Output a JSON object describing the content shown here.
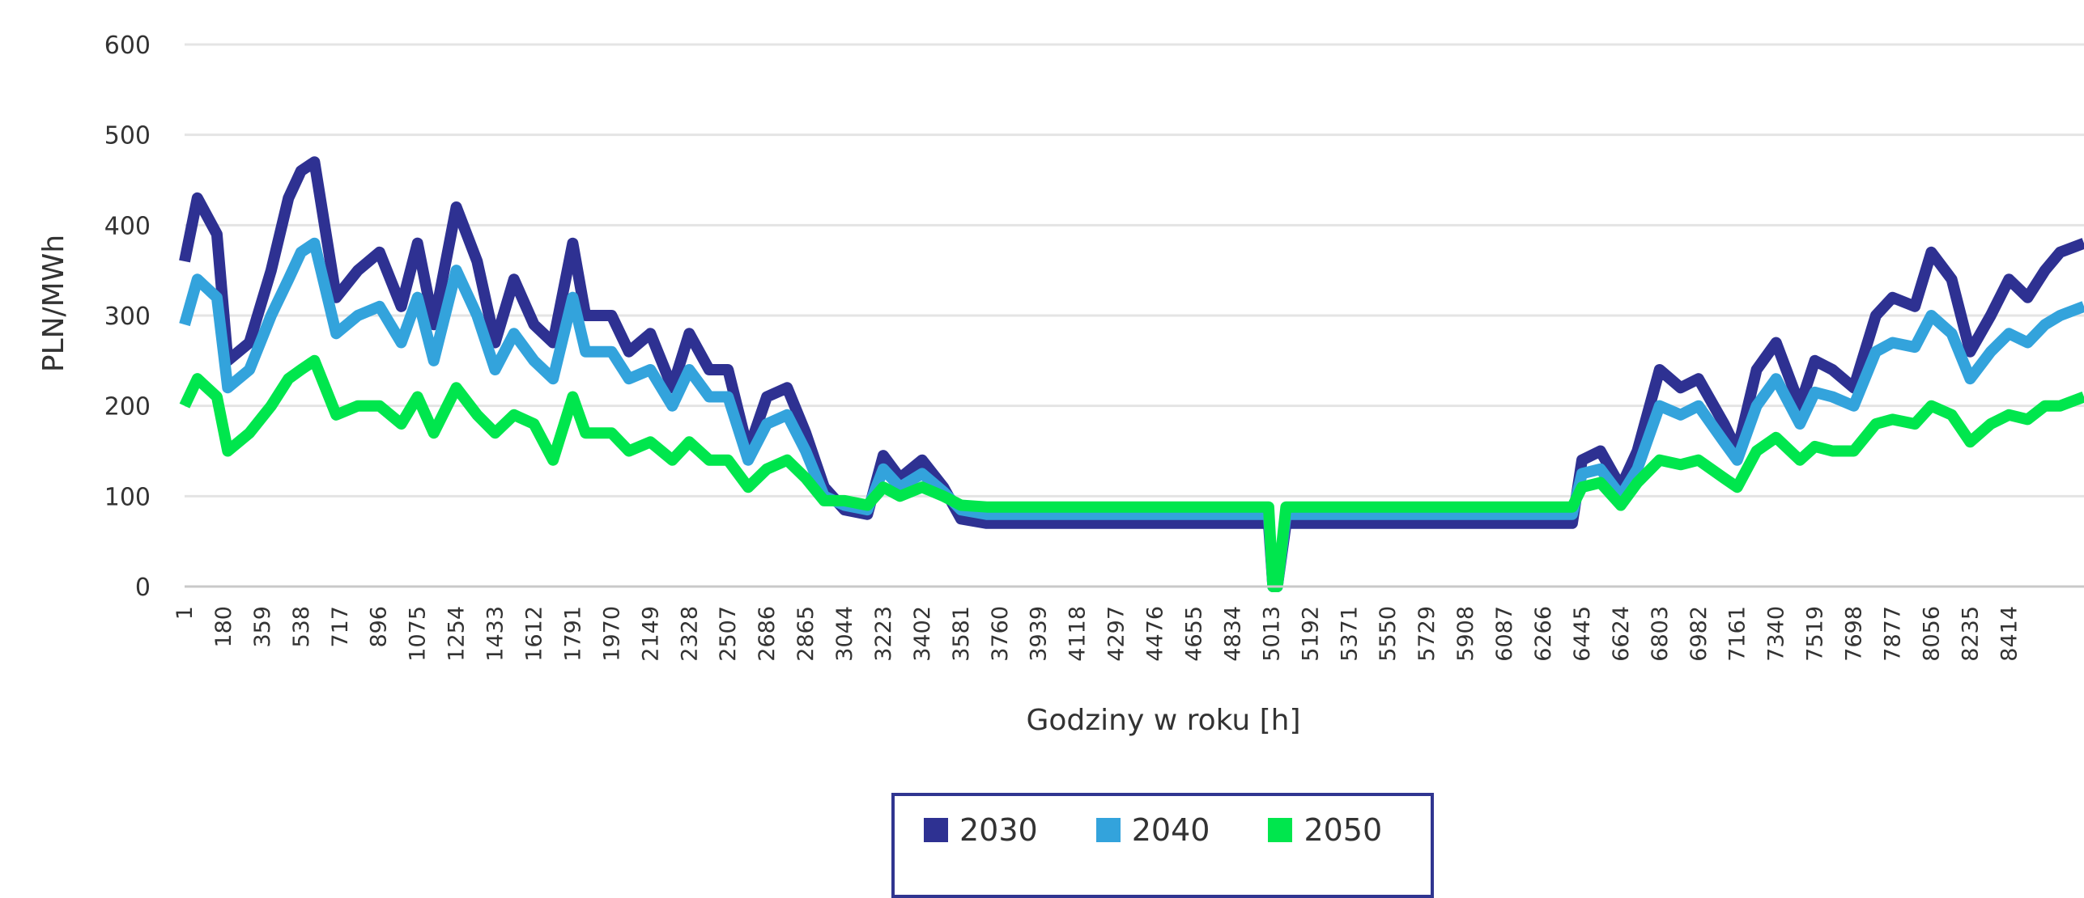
{
  "chart_data": {
    "type": "line",
    "title": "",
    "xlabel": "Godziny w roku [h]",
    "ylabel": "PLN/MWh",
    "ylim": [
      0,
      600
    ],
    "yticks": [
      0,
      100,
      200,
      300,
      400,
      500,
      600
    ],
    "xlim": [
      1,
      8760
    ],
    "xticks": [
      "1",
      "180",
      "359",
      "538",
      "717",
      "896",
      "1075",
      "1254",
      "1433",
      "1612",
      "1791",
      "1970",
      "2149",
      "2328",
      "2507",
      "2686",
      "2865",
      "3044",
      "3223",
      "3402",
      "3581",
      "3760",
      "3939",
      "4118",
      "4297",
      "4476",
      "4655",
      "4834",
      "5013",
      "5192",
      "5371",
      "5550",
      "5729",
      "5908",
      "6087",
      "6266",
      "6445",
      "6624",
      "6803",
      "6982",
      "7161",
      "7340",
      "7519",
      "7698",
      "7877",
      "8056",
      "8235",
      "8414"
    ],
    "grid": true,
    "legend_position": "bottom",
    "series": [
      {
        "name": "2030",
        "color": "#2e3192",
        "x": [
          1,
          60,
          150,
          200,
          300,
          400,
          480,
          538,
          600,
          700,
          800,
          900,
          1000,
          1075,
          1150,
          1254,
          1350,
          1433,
          1520,
          1612,
          1700,
          1791,
          1850,
          1970,
          2050,
          2149,
          2250,
          2328,
          2420,
          2507,
          2600,
          2686,
          2780,
          2865,
          2950,
          3044,
          3150,
          3223,
          3300,
          3402,
          3500,
          3581,
          3700,
          4000,
          4500,
          5000,
          5020,
          5040,
          5080,
          5100,
          5200,
          5600,
          6000,
          6400,
          6445,
          6530,
          6624,
          6700,
          6803,
          6900,
          6982,
          7100,
          7161,
          7250,
          7340,
          7450,
          7519,
          7600,
          7698,
          7800,
          7877,
          7980,
          8056,
          8150,
          8235,
          8330,
          8414,
          8500,
          8580,
          8650,
          8760
        ],
        "y": [
          360,
          430,
          390,
          250,
          270,
          350,
          430,
          460,
          470,
          320,
          350,
          370,
          310,
          380,
          290,
          420,
          360,
          270,
          340,
          290,
          270,
          380,
          300,
          300,
          260,
          280,
          220,
          280,
          240,
          240,
          150,
          210,
          220,
          170,
          110,
          85,
          80,
          145,
          120,
          140,
          110,
          75,
          70,
          70,
          70,
          70,
          0,
          0,
          70,
          70,
          70,
          70,
          70,
          70,
          140,
          150,
          110,
          150,
          240,
          220,
          230,
          180,
          150,
          240,
          270,
          200,
          250,
          240,
          220,
          300,
          320,
          310,
          370,
          340,
          260,
          300,
          340,
          320,
          350,
          370,
          380
        ]
      },
      {
        "name": "2040",
        "color": "#33a3dc",
        "x": [
          1,
          60,
          150,
          200,
          300,
          400,
          480,
          538,
          600,
          700,
          800,
          900,
          1000,
          1075,
          1150,
          1254,
          1350,
          1433,
          1520,
          1612,
          1700,
          1791,
          1850,
          1970,
          2050,
          2149,
          2250,
          2328,
          2420,
          2507,
          2600,
          2686,
          2780,
          2865,
          2950,
          3044,
          3150,
          3223,
          3300,
          3402,
          3500,
          3581,
          3700,
          4000,
          4500,
          5000,
          5020,
          5040,
          5080,
          5100,
          5200,
          5600,
          6000,
          6400,
          6445,
          6530,
          6624,
          6700,
          6803,
          6900,
          6982,
          7100,
          7161,
          7250,
          7340,
          7450,
          7519,
          7600,
          7698,
          7800,
          7877,
          7980,
          8056,
          8150,
          8235,
          8330,
          8414,
          8500,
          8580,
          8650,
          8760
        ],
        "y": [
          290,
          340,
          320,
          220,
          240,
          300,
          340,
          370,
          380,
          280,
          300,
          310,
          270,
          320,
          250,
          350,
          300,
          240,
          280,
          250,
          230,
          320,
          260,
          260,
          230,
          240,
          200,
          240,
          210,
          210,
          140,
          180,
          190,
          150,
          100,
          90,
          85,
          130,
          110,
          125,
          105,
          85,
          80,
          80,
          80,
          80,
          0,
          0,
          80,
          80,
          80,
          80,
          80,
          80,
          125,
          130,
          100,
          130,
          200,
          190,
          200,
          160,
          140,
          200,
          230,
          180,
          215,
          210,
          200,
          260,
          270,
          265,
          300,
          280,
          230,
          260,
          280,
          270,
          290,
          300,
          310
        ]
      },
      {
        "name": "2050",
        "color": "#00e64d",
        "x": [
          1,
          60,
          150,
          200,
          300,
          400,
          480,
          538,
          600,
          700,
          800,
          900,
          1000,
          1075,
          1150,
          1254,
          1350,
          1433,
          1520,
          1612,
          1700,
          1791,
          1850,
          1970,
          2050,
          2149,
          2250,
          2328,
          2420,
          2507,
          2600,
          2686,
          2780,
          2865,
          2950,
          3044,
          3150,
          3223,
          3300,
          3402,
          3500,
          3581,
          3700,
          4000,
          4500,
          5000,
          5020,
          5040,
          5080,
          5100,
          5200,
          5600,
          6000,
          6400,
          6445,
          6530,
          6624,
          6700,
          6803,
          6900,
          6982,
          7100,
          7161,
          7250,
          7340,
          7450,
          7519,
          7600,
          7698,
          7800,
          7877,
          7980,
          8056,
          8150,
          8235,
          8330,
          8414,
          8500,
          8580,
          8650,
          8760
        ],
        "y": [
          200,
          230,
          210,
          150,
          170,
          200,
          230,
          240,
          250,
          190,
          200,
          200,
          180,
          210,
          170,
          220,
          190,
          170,
          190,
          180,
          140,
          210,
          170,
          170,
          150,
          160,
          140,
          160,
          140,
          140,
          110,
          130,
          140,
          120,
          95,
          95,
          90,
          110,
          100,
          110,
          100,
          90,
          88,
          88,
          88,
          88,
          0,
          0,
          88,
          88,
          88,
          88,
          88,
          88,
          110,
          115,
          90,
          115,
          140,
          135,
          140,
          120,
          110,
          150,
          165,
          140,
          155,
          150,
          150,
          180,
          185,
          180,
          200,
          190,
          160,
          180,
          190,
          185,
          200,
          200,
          210
        ]
      }
    ]
  }
}
